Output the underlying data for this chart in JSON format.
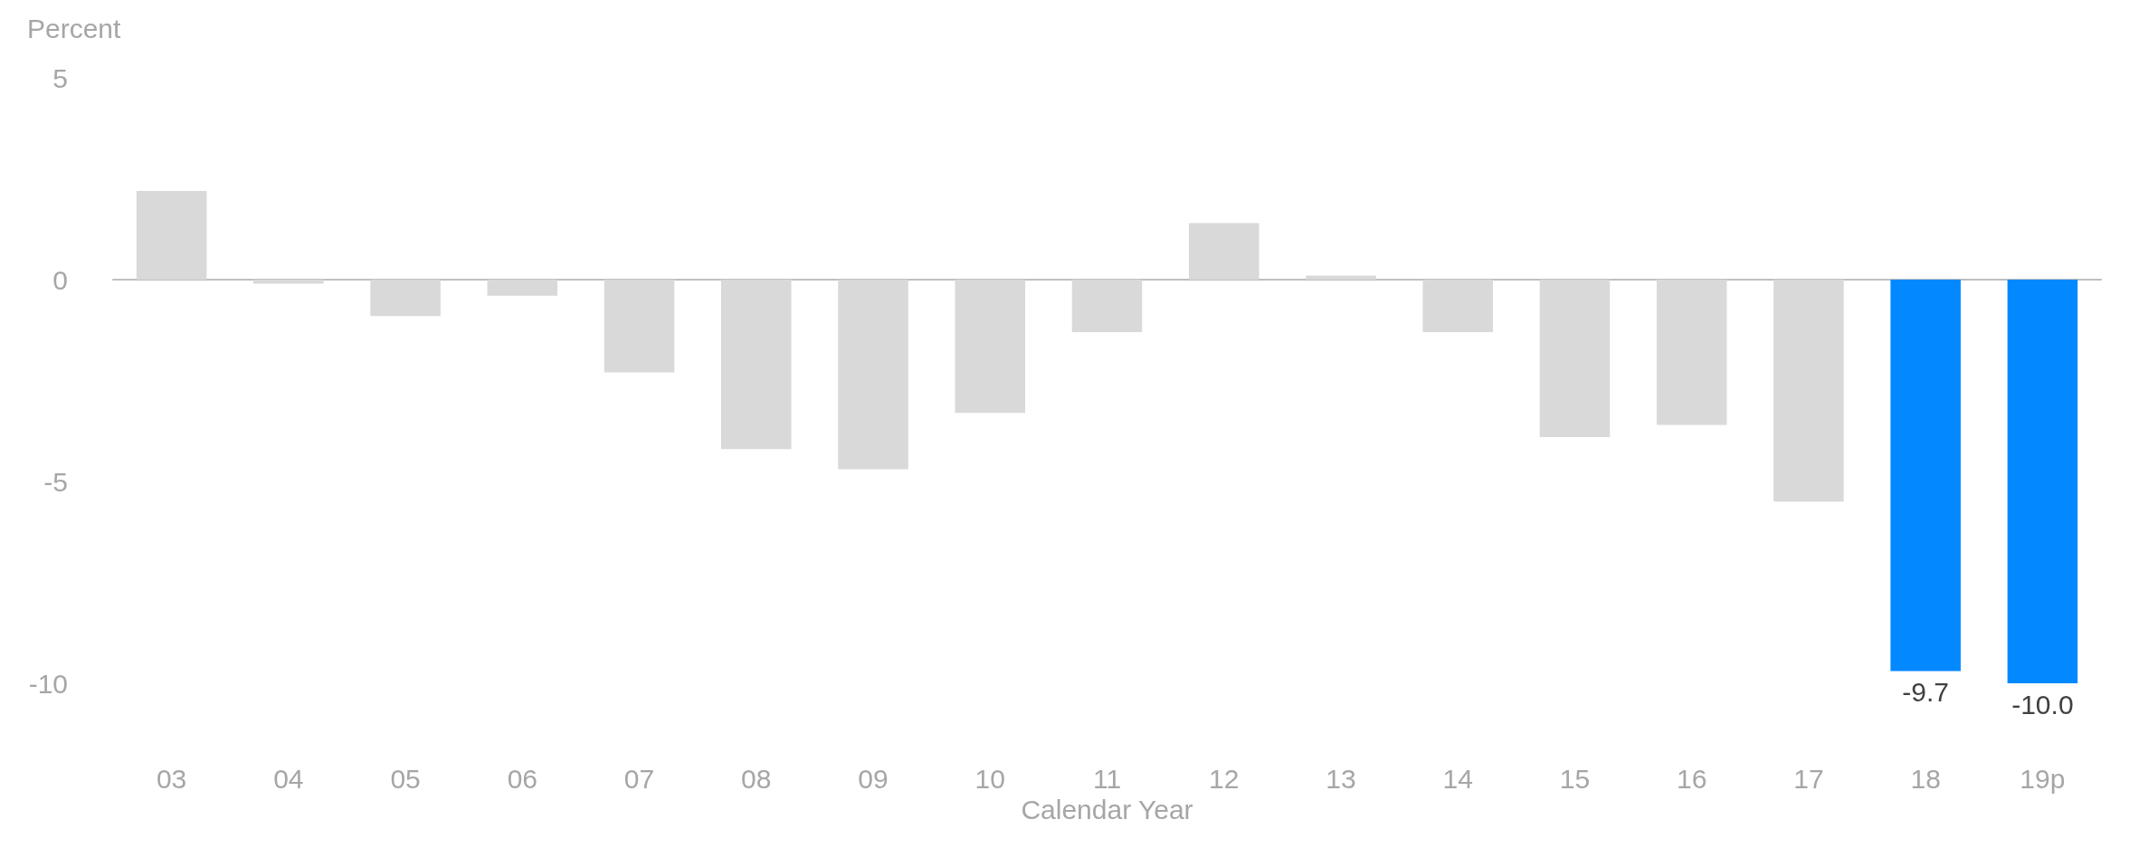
{
  "chart_data": {
    "type": "bar",
    "ylabel": "Percent",
    "xlabel": "Calendar Year",
    "categories": [
      "03",
      "04",
      "05",
      "06",
      "07",
      "08",
      "09",
      "10",
      "11",
      "12",
      "13",
      "14",
      "15",
      "16",
      "17",
      "18",
      "19p"
    ],
    "values": [
      2.2,
      -0.1,
      -0.9,
      -0.4,
      -2.3,
      -4.2,
      -4.7,
      -3.3,
      -1.3,
      1.4,
      0.1,
      -1.3,
      -3.9,
      -3.6,
      -5.5,
      -9.7,
      -10.0
    ],
    "colors": [
      "#d9d9d9",
      "#d9d9d9",
      "#d9d9d9",
      "#d9d9d9",
      "#d9d9d9",
      "#d9d9d9",
      "#d9d9d9",
      "#d9d9d9",
      "#d9d9d9",
      "#d9d9d9",
      "#d9d9d9",
      "#d9d9d9",
      "#d9d9d9",
      "#d9d9d9",
      "#d9d9d9",
      "#0288ff",
      "#0288ff"
    ],
    "value_labels": [
      null,
      null,
      null,
      null,
      null,
      null,
      null,
      null,
      null,
      null,
      null,
      null,
      null,
      null,
      null,
      "-9.7",
      "-10.0"
    ],
    "ylim": [
      -10,
      5
    ],
    "yticks": [
      -10,
      -5,
      0,
      5
    ]
  }
}
